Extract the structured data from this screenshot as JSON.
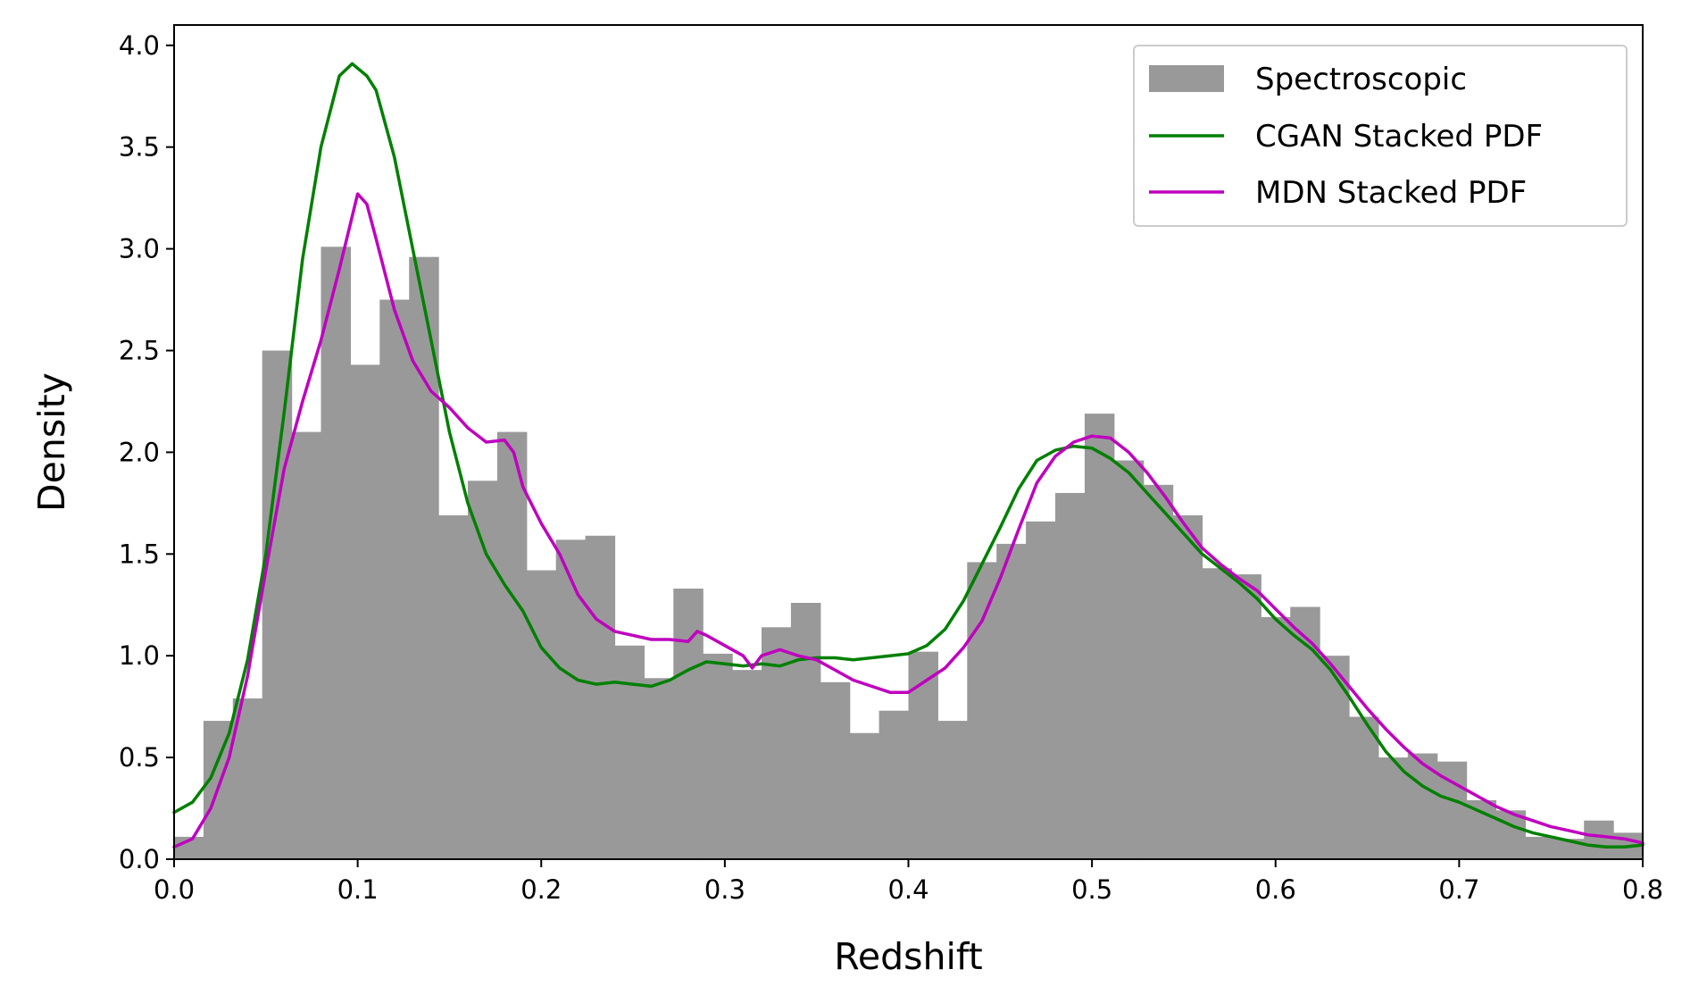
{
  "chart_data": {
    "type": "histogram+line",
    "xlabel": "Redshift",
    "ylabel": "Density",
    "xlim": [
      0.0,
      0.8
    ],
    "ylim": [
      0.0,
      4.1
    ],
    "xticks": [
      "0.0",
      "0.1",
      "0.2",
      "0.3",
      "0.4",
      "0.5",
      "0.6",
      "0.7",
      "0.8"
    ],
    "yticks": [
      "0.0",
      "0.5",
      "1.0",
      "1.5",
      "2.0",
      "2.5",
      "3.0",
      "3.5",
      "4.0"
    ],
    "grid": false,
    "legend_position": "top-right",
    "histogram": {
      "name": "Spectroscopic",
      "color": "#999999",
      "bin_width": 0.016,
      "bin_start": 0.0,
      "values": [
        0.11,
        0.68,
        0.79,
        2.5,
        2.1,
        3.01,
        2.43,
        2.75,
        2.96,
        1.69,
        1.86,
        2.1,
        1.42,
        1.57,
        1.59,
        1.05,
        0.89,
        1.33,
        1.01,
        0.93,
        1.14,
        1.26,
        0.87,
        0.62,
        0.73,
        1.02,
        0.68,
        1.46,
        1.55,
        1.66,
        1.8,
        2.19,
        1.96,
        1.84,
        1.69,
        1.43,
        1.4,
        1.19,
        1.24,
        1.0,
        0.7,
        0.5,
        0.52,
        0.48,
        0.29,
        0.24,
        0.11,
        0.1,
        0.19,
        0.13
      ]
    },
    "series": [
      {
        "name": "CGAN Stacked PDF",
        "color": "#008000",
        "points": [
          [
            0.0,
            0.23
          ],
          [
            0.01,
            0.28
          ],
          [
            0.02,
            0.4
          ],
          [
            0.03,
            0.62
          ],
          [
            0.04,
            0.98
          ],
          [
            0.05,
            1.5
          ],
          [
            0.06,
            2.2
          ],
          [
            0.07,
            2.95
          ],
          [
            0.08,
            3.5
          ],
          [
            0.09,
            3.85
          ],
          [
            0.097,
            3.91
          ],
          [
            0.105,
            3.85
          ],
          [
            0.11,
            3.78
          ],
          [
            0.12,
            3.45
          ],
          [
            0.13,
            3.0
          ],
          [
            0.14,
            2.55
          ],
          [
            0.15,
            2.1
          ],
          [
            0.16,
            1.75
          ],
          [
            0.17,
            1.5
          ],
          [
            0.18,
            1.35
          ],
          [
            0.19,
            1.22
          ],
          [
            0.2,
            1.04
          ],
          [
            0.21,
            0.94
          ],
          [
            0.22,
            0.88
          ],
          [
            0.23,
            0.86
          ],
          [
            0.24,
            0.87
          ],
          [
            0.25,
            0.86
          ],
          [
            0.26,
            0.85
          ],
          [
            0.27,
            0.88
          ],
          [
            0.28,
            0.93
          ],
          [
            0.29,
            0.97
          ],
          [
            0.3,
            0.96
          ],
          [
            0.31,
            0.95
          ],
          [
            0.32,
            0.96
          ],
          [
            0.33,
            0.95
          ],
          [
            0.34,
            0.98
          ],
          [
            0.35,
            0.99
          ],
          [
            0.36,
            0.99
          ],
          [
            0.37,
            0.98
          ],
          [
            0.38,
            0.99
          ],
          [
            0.39,
            1.0
          ],
          [
            0.4,
            1.01
          ],
          [
            0.41,
            1.05
          ],
          [
            0.42,
            1.13
          ],
          [
            0.43,
            1.27
          ],
          [
            0.44,
            1.45
          ],
          [
            0.45,
            1.63
          ],
          [
            0.46,
            1.82
          ],
          [
            0.47,
            1.96
          ],
          [
            0.48,
            2.01
          ],
          [
            0.49,
            2.03
          ],
          [
            0.5,
            2.02
          ],
          [
            0.51,
            1.97
          ],
          [
            0.52,
            1.9
          ],
          [
            0.53,
            1.8
          ],
          [
            0.54,
            1.7
          ],
          [
            0.55,
            1.6
          ],
          [
            0.56,
            1.5
          ],
          [
            0.57,
            1.43
          ],
          [
            0.58,
            1.36
          ],
          [
            0.59,
            1.28
          ],
          [
            0.6,
            1.18
          ],
          [
            0.61,
            1.1
          ],
          [
            0.62,
            1.03
          ],
          [
            0.63,
            0.93
          ],
          [
            0.64,
            0.8
          ],
          [
            0.65,
            0.66
          ],
          [
            0.66,
            0.53
          ],
          [
            0.67,
            0.43
          ],
          [
            0.68,
            0.36
          ],
          [
            0.69,
            0.31
          ],
          [
            0.7,
            0.28
          ],
          [
            0.71,
            0.24
          ],
          [
            0.72,
            0.2
          ],
          [
            0.73,
            0.16
          ],
          [
            0.74,
            0.13
          ],
          [
            0.75,
            0.11
          ],
          [
            0.76,
            0.09
          ],
          [
            0.77,
            0.07
          ],
          [
            0.78,
            0.06
          ],
          [
            0.79,
            0.06
          ],
          [
            0.8,
            0.07
          ]
        ]
      },
      {
        "name": "MDN Stacked PDF",
        "color": "#BF00BF",
        "points": [
          [
            0.0,
            0.06
          ],
          [
            0.01,
            0.1
          ],
          [
            0.02,
            0.25
          ],
          [
            0.03,
            0.5
          ],
          [
            0.04,
            0.9
          ],
          [
            0.05,
            1.42
          ],
          [
            0.06,
            1.92
          ],
          [
            0.07,
            2.25
          ],
          [
            0.08,
            2.55
          ],
          [
            0.09,
            2.9
          ],
          [
            0.1,
            3.27
          ],
          [
            0.105,
            3.22
          ],
          [
            0.11,
            3.05
          ],
          [
            0.12,
            2.7
          ],
          [
            0.13,
            2.45
          ],
          [
            0.14,
            2.3
          ],
          [
            0.15,
            2.22
          ],
          [
            0.16,
            2.12
          ],
          [
            0.17,
            2.05
          ],
          [
            0.18,
            2.06
          ],
          [
            0.185,
            2.0
          ],
          [
            0.19,
            1.83
          ],
          [
            0.2,
            1.65
          ],
          [
            0.21,
            1.5
          ],
          [
            0.22,
            1.3
          ],
          [
            0.23,
            1.18
          ],
          [
            0.24,
            1.12
          ],
          [
            0.25,
            1.1
          ],
          [
            0.26,
            1.08
          ],
          [
            0.27,
            1.08
          ],
          [
            0.28,
            1.07
          ],
          [
            0.285,
            1.12
          ],
          [
            0.29,
            1.1
          ],
          [
            0.3,
            1.05
          ],
          [
            0.31,
            1.0
          ],
          [
            0.315,
            0.94
          ],
          [
            0.32,
            1.0
          ],
          [
            0.33,
            1.03
          ],
          [
            0.34,
            1.0
          ],
          [
            0.35,
            0.98
          ],
          [
            0.36,
            0.93
          ],
          [
            0.37,
            0.88
          ],
          [
            0.38,
            0.85
          ],
          [
            0.39,
            0.82
          ],
          [
            0.4,
            0.82
          ],
          [
            0.41,
            0.88
          ],
          [
            0.42,
            0.94
          ],
          [
            0.43,
            1.04
          ],
          [
            0.44,
            1.17
          ],
          [
            0.45,
            1.38
          ],
          [
            0.46,
            1.62
          ],
          [
            0.47,
            1.85
          ],
          [
            0.48,
            1.98
          ],
          [
            0.49,
            2.05
          ],
          [
            0.5,
            2.08
          ],
          [
            0.51,
            2.07
          ],
          [
            0.52,
            2.0
          ],
          [
            0.53,
            1.9
          ],
          [
            0.54,
            1.78
          ],
          [
            0.55,
            1.65
          ],
          [
            0.56,
            1.53
          ],
          [
            0.57,
            1.45
          ],
          [
            0.58,
            1.38
          ],
          [
            0.59,
            1.32
          ],
          [
            0.6,
            1.23
          ],
          [
            0.61,
            1.14
          ],
          [
            0.62,
            1.06
          ],
          [
            0.63,
            0.96
          ],
          [
            0.64,
            0.85
          ],
          [
            0.65,
            0.74
          ],
          [
            0.66,
            0.64
          ],
          [
            0.67,
            0.55
          ],
          [
            0.68,
            0.47
          ],
          [
            0.69,
            0.41
          ],
          [
            0.7,
            0.36
          ],
          [
            0.71,
            0.31
          ],
          [
            0.72,
            0.26
          ],
          [
            0.73,
            0.22
          ],
          [
            0.74,
            0.19
          ],
          [
            0.75,
            0.16
          ],
          [
            0.76,
            0.14
          ],
          [
            0.77,
            0.12
          ],
          [
            0.78,
            0.11
          ],
          [
            0.79,
            0.1
          ],
          [
            0.8,
            0.08
          ]
        ]
      }
    ]
  }
}
